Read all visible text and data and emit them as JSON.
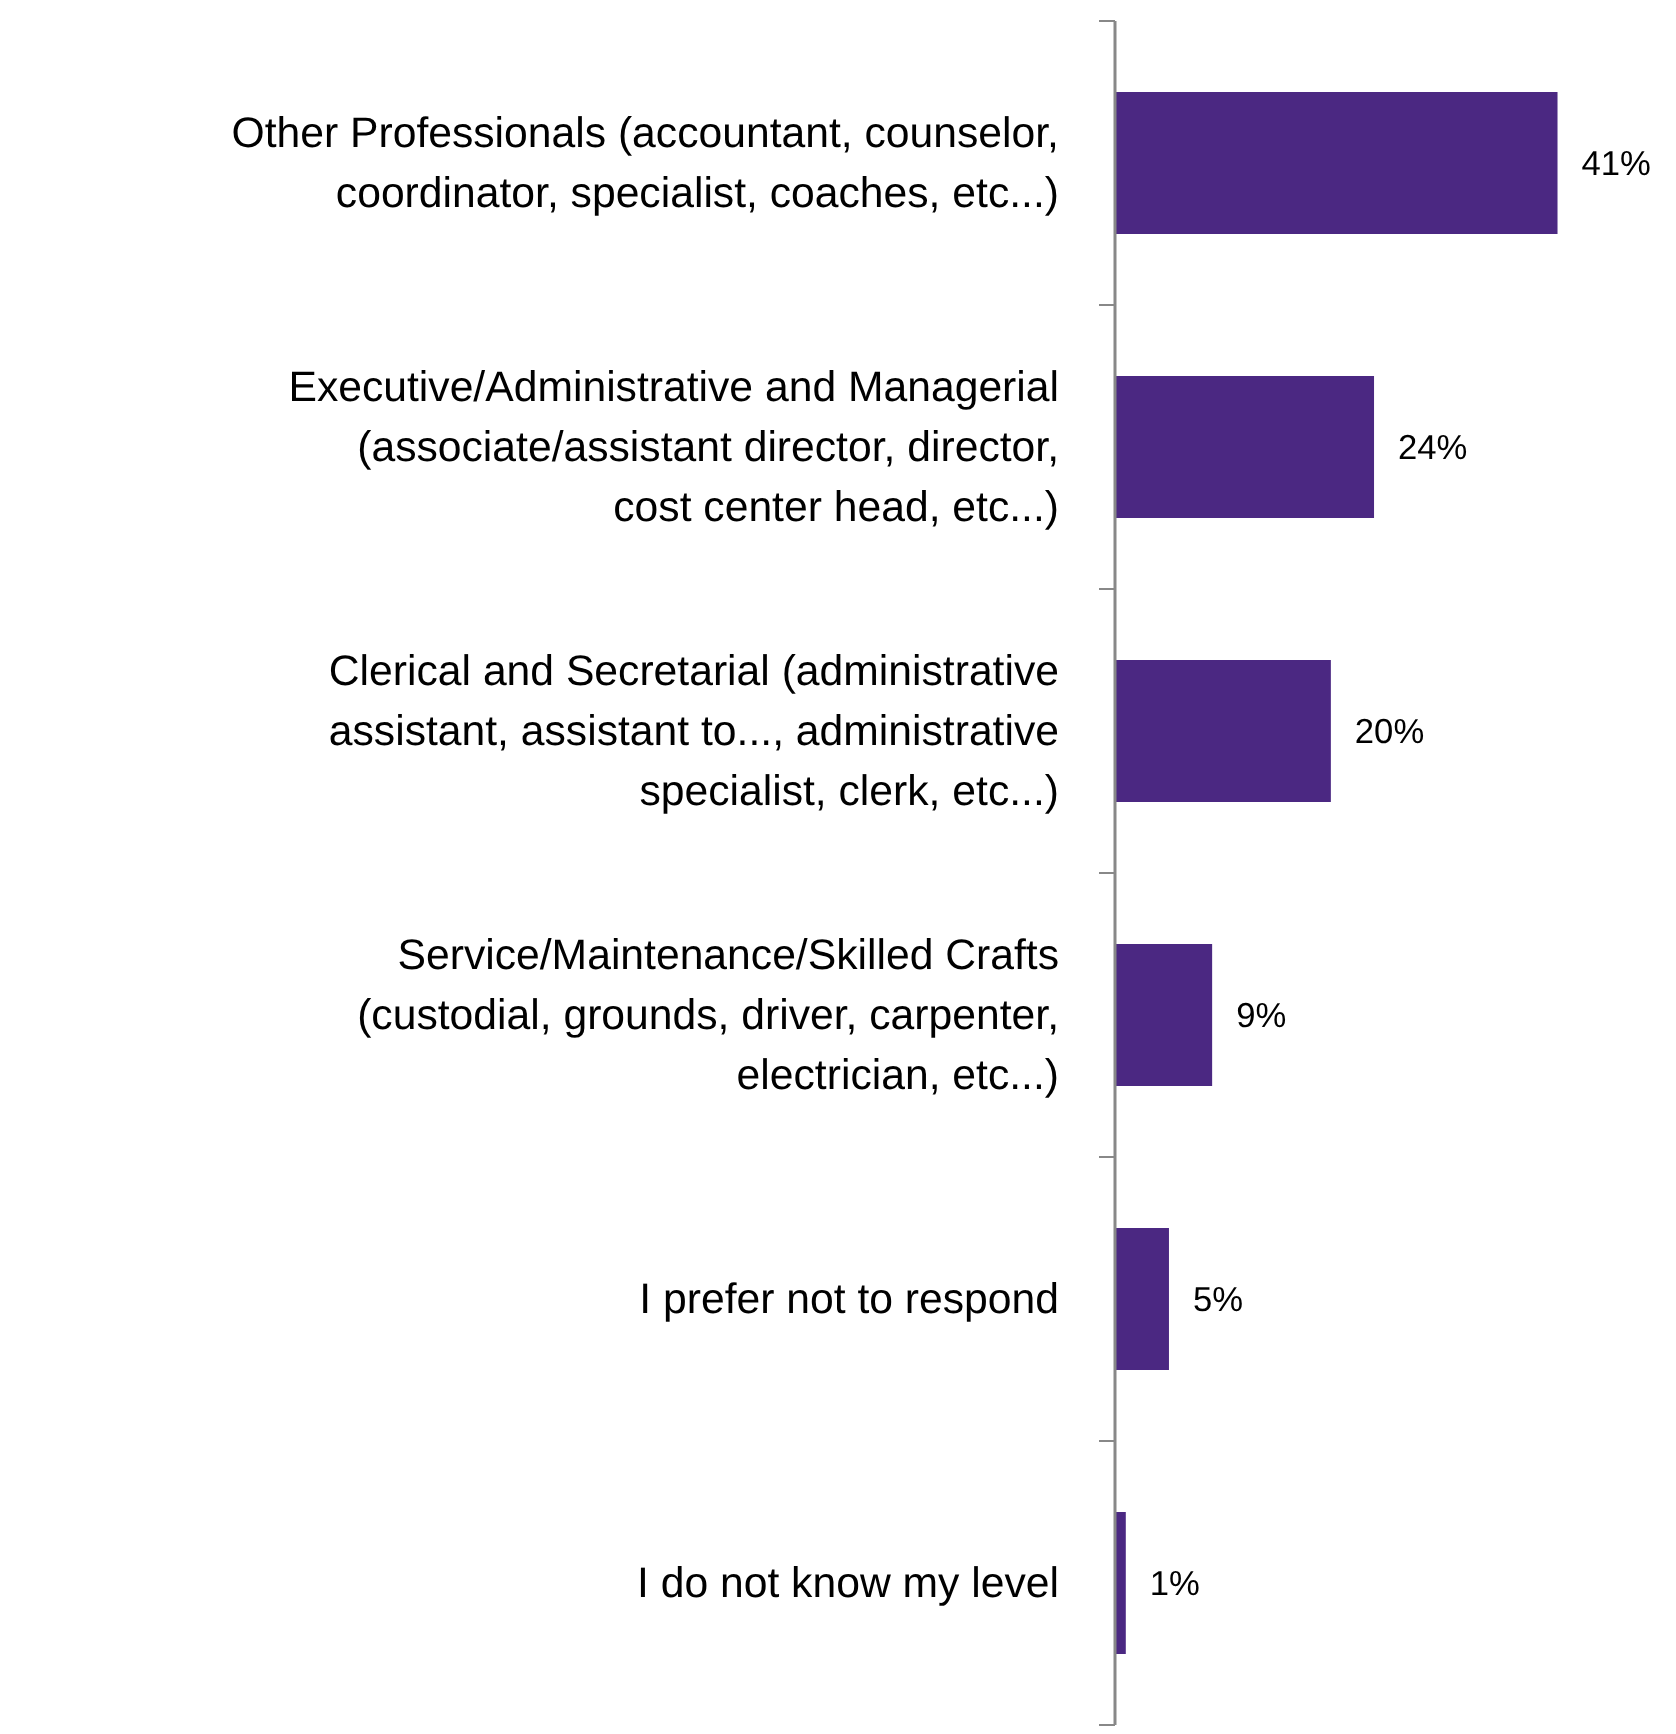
{
  "chart_data": {
    "type": "bar",
    "orientation": "horizontal",
    "categories": [
      "Other Professionals (accountant, counselor, coordinator, specialist, coaches, etc...)",
      "Executive/Administrative and Managerial (associate/assistant director, director, cost center head, etc...)",
      "Clerical and Secretarial (administrative assistant, assistant to..., administrative specialist, clerk, etc...)",
      "Service/Maintenance/Skilled Crafts (custodial, grounds, driver, carpenter, electrician, etc...)",
      "I prefer not to respond",
      "I do not know my level"
    ],
    "values": [
      41,
      24,
      20,
      9,
      5,
      1
    ],
    "value_labels": [
      "41%",
      "24%",
      "20%",
      "9%",
      "5%",
      "1%"
    ],
    "color": "#4b2882",
    "tick_labels": "y"
  }
}
